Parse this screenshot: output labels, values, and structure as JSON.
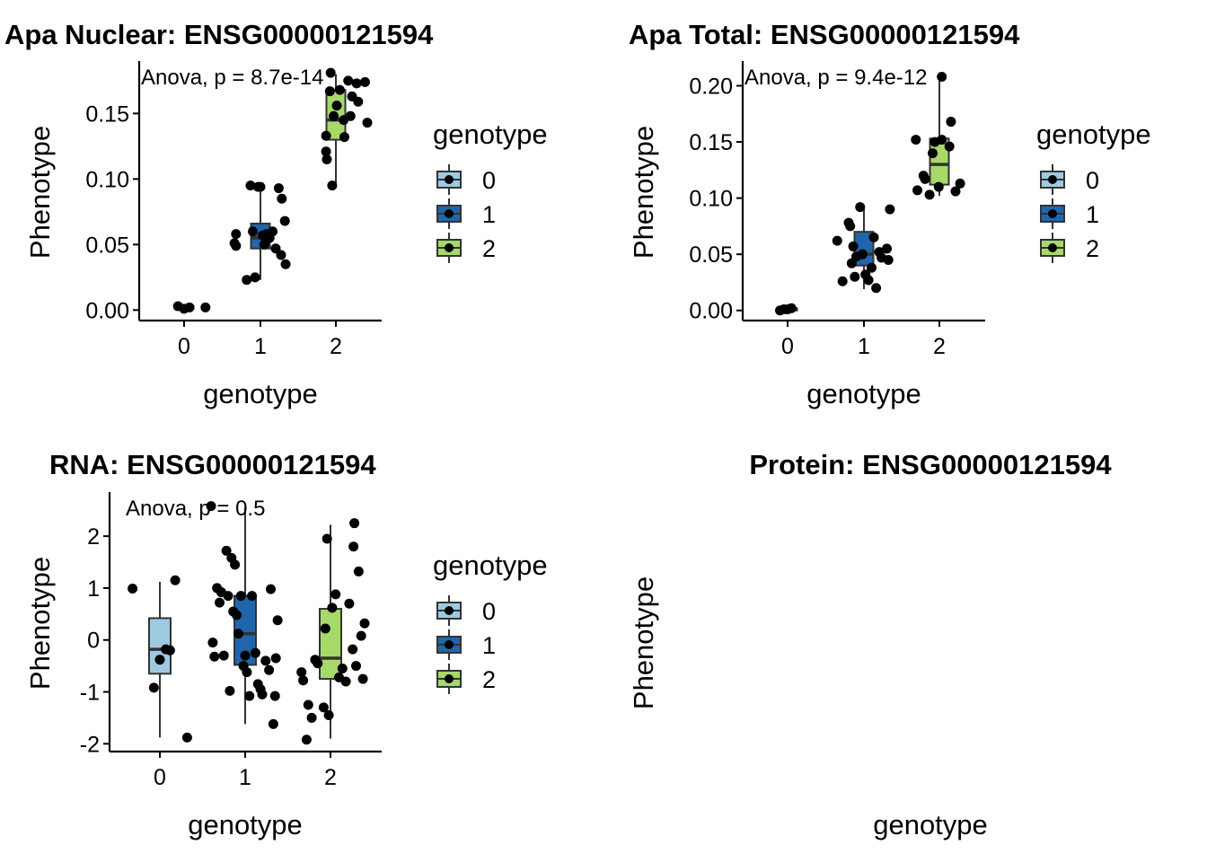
{
  "colors": {
    "genotype_0": "#9ecae1",
    "genotype_1": "#2166ac",
    "genotype_2": "#a6d96a",
    "points": "#000000",
    "axis": "#000000"
  },
  "chart_data": [
    {
      "type": "box",
      "title": "Apa Nuclear: ENSG00000121594",
      "xlabel": "genotype",
      "ylabel": "Phenotype",
      "annotation": "Anova, p = 8.7e-14",
      "categories": [
        "0",
        "1",
        "2"
      ],
      "yticks": [
        0.0,
        0.05,
        0.1,
        0.15
      ],
      "ytick_labels": [
        "0.00",
        "0.05",
        "0.10",
        "0.15"
      ],
      "ylim": [
        -0.008,
        0.19
      ],
      "legend": {
        "title": "genotype",
        "labels": [
          "0",
          "1",
          "2"
        ],
        "position": "right"
      },
      "boxes": [
        {
          "category": "0",
          "q1": 0.001,
          "median": 0.002,
          "q3": 0.003,
          "whisker_low": 0.0,
          "whisker_high": 0.004
        },
        {
          "category": "1",
          "q1": 0.047,
          "median": 0.055,
          "q3": 0.066,
          "whisker_low": 0.023,
          "whisker_high": 0.094
        },
        {
          "category": "2",
          "q1": 0.13,
          "median": 0.145,
          "q3": 0.168,
          "whisker_low": 0.095,
          "whisker_high": 0.18
        }
      ],
      "points": [
        {
          "x": -0.08,
          "y": 0.003
        },
        {
          "x": 0.0,
          "y": 0.001
        },
        {
          "x": 0.07,
          "y": 0.002
        },
        {
          "x": 0.28,
          "y": 0.002
        },
        {
          "x": 0.66,
          "y": 0.051
        },
        {
          "x": 0.68,
          "y": 0.058
        },
        {
          "x": 0.68,
          "y": 0.049
        },
        {
          "x": 0.82,
          "y": 0.023
        },
        {
          "x": 0.87,
          "y": 0.095
        },
        {
          "x": 0.9,
          "y": 0.06
        },
        {
          "x": 0.93,
          "y": 0.025
        },
        {
          "x": 0.97,
          "y": 0.094
        },
        {
          "x": 1.0,
          "y": 0.094
        },
        {
          "x": 1.03,
          "y": 0.057
        },
        {
          "x": 1.05,
          "y": 0.05
        },
        {
          "x": 1.08,
          "y": 0.058
        },
        {
          "x": 1.12,
          "y": 0.055
        },
        {
          "x": 1.16,
          "y": 0.06
        },
        {
          "x": 1.2,
          "y": 0.047
        },
        {
          "x": 1.24,
          "y": 0.093
        },
        {
          "x": 1.28,
          "y": 0.085
        },
        {
          "x": 1.32,
          "y": 0.068
        },
        {
          "x": 1.27,
          "y": 0.042
        },
        {
          "x": 1.33,
          "y": 0.035
        },
        {
          "x": 1.86,
          "y": 0.121
        },
        {
          "x": 1.86,
          "y": 0.133
        },
        {
          "x": 1.87,
          "y": 0.115
        },
        {
          "x": 1.91,
          "y": 0.167
        },
        {
          "x": 1.94,
          "y": 0.095
        },
        {
          "x": 1.96,
          "y": 0.148
        },
        {
          "x": 2.0,
          "y": 0.156
        },
        {
          "x": 2.04,
          "y": 0.168
        },
        {
          "x": 2.1,
          "y": 0.132
        },
        {
          "x": 2.15,
          "y": 0.175
        },
        {
          "x": 2.2,
          "y": 0.163
        },
        {
          "x": 2.26,
          "y": 0.173
        },
        {
          "x": 2.18,
          "y": 0.148
        },
        {
          "x": 2.28,
          "y": 0.159
        },
        {
          "x": 2.37,
          "y": 0.174
        },
        {
          "x": 2.4,
          "y": 0.143
        },
        {
          "x": 2.09,
          "y": 0.145
        },
        {
          "x": 1.92,
          "y": 0.181
        }
      ]
    },
    {
      "type": "box",
      "title": "Apa Total: ENSG00000121594",
      "xlabel": "genotype",
      "ylabel": "Phenotype",
      "annotation": "Anova, p = 9.4e-12",
      "categories": [
        "0",
        "1",
        "2"
      ],
      "yticks": [
        0.0,
        0.05,
        0.1,
        0.15,
        0.2
      ],
      "ytick_labels": [
        "0.00",
        "0.05",
        "0.10",
        "0.15",
        "0.20"
      ],
      "ylim": [
        -0.009,
        0.222
      ],
      "legend": {
        "title": "genotype",
        "labels": [
          "0",
          "1",
          "2"
        ],
        "position": "right"
      },
      "boxes": [
        {
          "category": "0",
          "q1": 0.0,
          "median": 0.001,
          "q3": 0.002,
          "whisker_low": 0.0,
          "whisker_high": 0.003
        },
        {
          "category": "1",
          "q1": 0.04,
          "median": 0.05,
          "q3": 0.07,
          "whisker_low": 0.019,
          "whisker_high": 0.092
        },
        {
          "category": "2",
          "q1": 0.112,
          "median": 0.13,
          "q3": 0.153,
          "whisker_low": 0.102,
          "whisker_high": 0.208
        }
      ],
      "points": [
        {
          "x": -0.1,
          "y": 0.0
        },
        {
          "x": -0.05,
          "y": 0.001
        },
        {
          "x": 0.0,
          "y": 0.001
        },
        {
          "x": 0.05,
          "y": 0.002
        },
        {
          "x": 0.65,
          "y": 0.062
        },
        {
          "x": 0.72,
          "y": 0.026
        },
        {
          "x": 0.8,
          "y": 0.078
        },
        {
          "x": 0.82,
          "y": 0.075
        },
        {
          "x": 0.84,
          "y": 0.042
        },
        {
          "x": 0.86,
          "y": 0.057
        },
        {
          "x": 0.88,
          "y": 0.03
        },
        {
          "x": 0.9,
          "y": 0.048
        },
        {
          "x": 0.95,
          "y": 0.092
        },
        {
          "x": 0.98,
          "y": 0.05
        },
        {
          "x": 1.02,
          "y": 0.032
        },
        {
          "x": 1.06,
          "y": 0.027
        },
        {
          "x": 1.1,
          "y": 0.038
        },
        {
          "x": 1.13,
          "y": 0.065
        },
        {
          "x": 1.16,
          "y": 0.02
        },
        {
          "x": 1.2,
          "y": 0.052
        },
        {
          "x": 1.23,
          "y": 0.047
        },
        {
          "x": 1.3,
          "y": 0.055
        },
        {
          "x": 1.34,
          "y": 0.09
        },
        {
          "x": 1.32,
          "y": 0.045
        },
        {
          "x": 1.68,
          "y": 0.152
        },
        {
          "x": 1.7,
          "y": 0.107
        },
        {
          "x": 1.78,
          "y": 0.12
        },
        {
          "x": 1.8,
          "y": 0.117
        },
        {
          "x": 1.86,
          "y": 0.103
        },
        {
          "x": 1.9,
          "y": 0.14
        },
        {
          "x": 1.93,
          "y": 0.15
        },
        {
          "x": 1.98,
          "y": 0.11
        },
        {
          "x": 2.02,
          "y": 0.152
        },
        {
          "x": 2.12,
          "y": 0.146
        },
        {
          "x": 2.14,
          "y": 0.168
        },
        {
          "x": 2.2,
          "y": 0.106
        },
        {
          "x": 2.26,
          "y": 0.113
        },
        {
          "x": 2.02,
          "y": 0.208
        }
      ]
    },
    {
      "type": "box",
      "title": "RNA: ENSG00000121594",
      "xlabel": "genotype",
      "ylabel": "Phenotype",
      "annotation": "Anova, p = 0.5",
      "categories": [
        "0",
        "1",
        "2"
      ],
      "yticks": [
        -2,
        -1,
        0,
        1,
        2
      ],
      "ytick_labels": [
        "-2",
        "-1",
        "0",
        "1",
        "2"
      ],
      "ylim": [
        -2.15,
        2.85
      ],
      "legend": {
        "title": "genotype",
        "labels": [
          "0",
          "1",
          "2"
        ],
        "position": "right"
      },
      "boxes": [
        {
          "category": "0",
          "q1": -0.65,
          "median": -0.18,
          "q3": 0.42,
          "whisker_low": -1.88,
          "whisker_high": 1.12
        },
        {
          "category": "1",
          "q1": -0.48,
          "median": 0.12,
          "q3": 0.85,
          "whisker_low": -1.62,
          "whisker_high": 2.55
        },
        {
          "category": "2",
          "q1": -0.75,
          "median": -0.35,
          "q3": 0.6,
          "whisker_low": -1.9,
          "whisker_high": 2.22
        }
      ],
      "points": [
        {
          "x": -0.32,
          "y": 0.99
        },
        {
          "x": -0.07,
          "y": -0.92
        },
        {
          "x": 0.0,
          "y": -0.38
        },
        {
          "x": 0.07,
          "y": -0.18
        },
        {
          "x": 0.12,
          "y": -0.2
        },
        {
          "x": 0.18,
          "y": 1.15
        },
        {
          "x": 0.32,
          "y": -1.88
        },
        {
          "x": 0.6,
          "y": 2.58
        },
        {
          "x": 0.62,
          "y": -0.05
        },
        {
          "x": 0.64,
          "y": -0.32
        },
        {
          "x": 0.67,
          "y": 1.0
        },
        {
          "x": 0.7,
          "y": 0.72
        },
        {
          "x": 0.72,
          "y": 0.92
        },
        {
          "x": 0.75,
          "y": -0.3
        },
        {
          "x": 0.78,
          "y": 1.72
        },
        {
          "x": 0.8,
          "y": 0.85
        },
        {
          "x": 0.82,
          "y": -0.98
        },
        {
          "x": 0.84,
          "y": 1.58
        },
        {
          "x": 0.86,
          "y": 0.55
        },
        {
          "x": 0.88,
          "y": 1.45
        },
        {
          "x": 0.9,
          "y": 0.48
        },
        {
          "x": 0.92,
          "y": 0.12
        },
        {
          "x": 0.95,
          "y": 0.85
        },
        {
          "x": 0.98,
          "y": -0.5
        },
        {
          "x": 1.0,
          "y": -0.3
        },
        {
          "x": 1.02,
          "y": -0.62
        },
        {
          "x": 1.05,
          "y": -1.08
        },
        {
          "x": 1.08,
          "y": 0.85
        },
        {
          "x": 1.12,
          "y": -0.25
        },
        {
          "x": 1.15,
          "y": -0.85
        },
        {
          "x": 1.18,
          "y": -0.95
        },
        {
          "x": 1.2,
          "y": -1.05
        },
        {
          "x": 1.24,
          "y": -0.4
        },
        {
          "x": 1.28,
          "y": -0.58
        },
        {
          "x": 1.3,
          "y": 0.98
        },
        {
          "x": 1.33,
          "y": -1.62
        },
        {
          "x": 1.35,
          "y": -1.08
        },
        {
          "x": 1.36,
          "y": -0.35
        },
        {
          "x": 1.38,
          "y": 0.38
        },
        {
          "x": 1.66,
          "y": -0.62
        },
        {
          "x": 1.68,
          "y": -0.78
        },
        {
          "x": 1.72,
          "y": -1.92
        },
        {
          "x": 1.74,
          "y": -1.25
        },
        {
          "x": 1.78,
          "y": -1.5
        },
        {
          "x": 1.82,
          "y": -0.38
        },
        {
          "x": 1.85,
          "y": -0.45
        },
        {
          "x": 1.92,
          "y": -1.3
        },
        {
          "x": 1.94,
          "y": 0.22
        },
        {
          "x": 1.96,
          "y": 1.95
        },
        {
          "x": 1.98,
          "y": -1.45
        },
        {
          "x": 2.02,
          "y": 0.62
        },
        {
          "x": 2.06,
          "y": 0.88
        },
        {
          "x": 2.1,
          "y": -0.72
        },
        {
          "x": 2.14,
          "y": -0.55
        },
        {
          "x": 2.18,
          "y": -0.8
        },
        {
          "x": 2.22,
          "y": 0.7
        },
        {
          "x": 2.26,
          "y": -0.18
        },
        {
          "x": 2.28,
          "y": 2.25
        },
        {
          "x": 2.3,
          "y": -0.5
        },
        {
          "x": 2.33,
          "y": 1.32
        },
        {
          "x": 2.36,
          "y": 0.08
        },
        {
          "x": 2.38,
          "y": -0.75
        },
        {
          "x": 2.4,
          "y": 0.32
        },
        {
          "x": 2.27,
          "y": 1.8
        }
      ]
    },
    {
      "type": "box",
      "title": "Protein: ENSG00000121594",
      "xlabel": "genotype",
      "ylabel": "Phenotype",
      "categories": [],
      "points": []
    }
  ]
}
